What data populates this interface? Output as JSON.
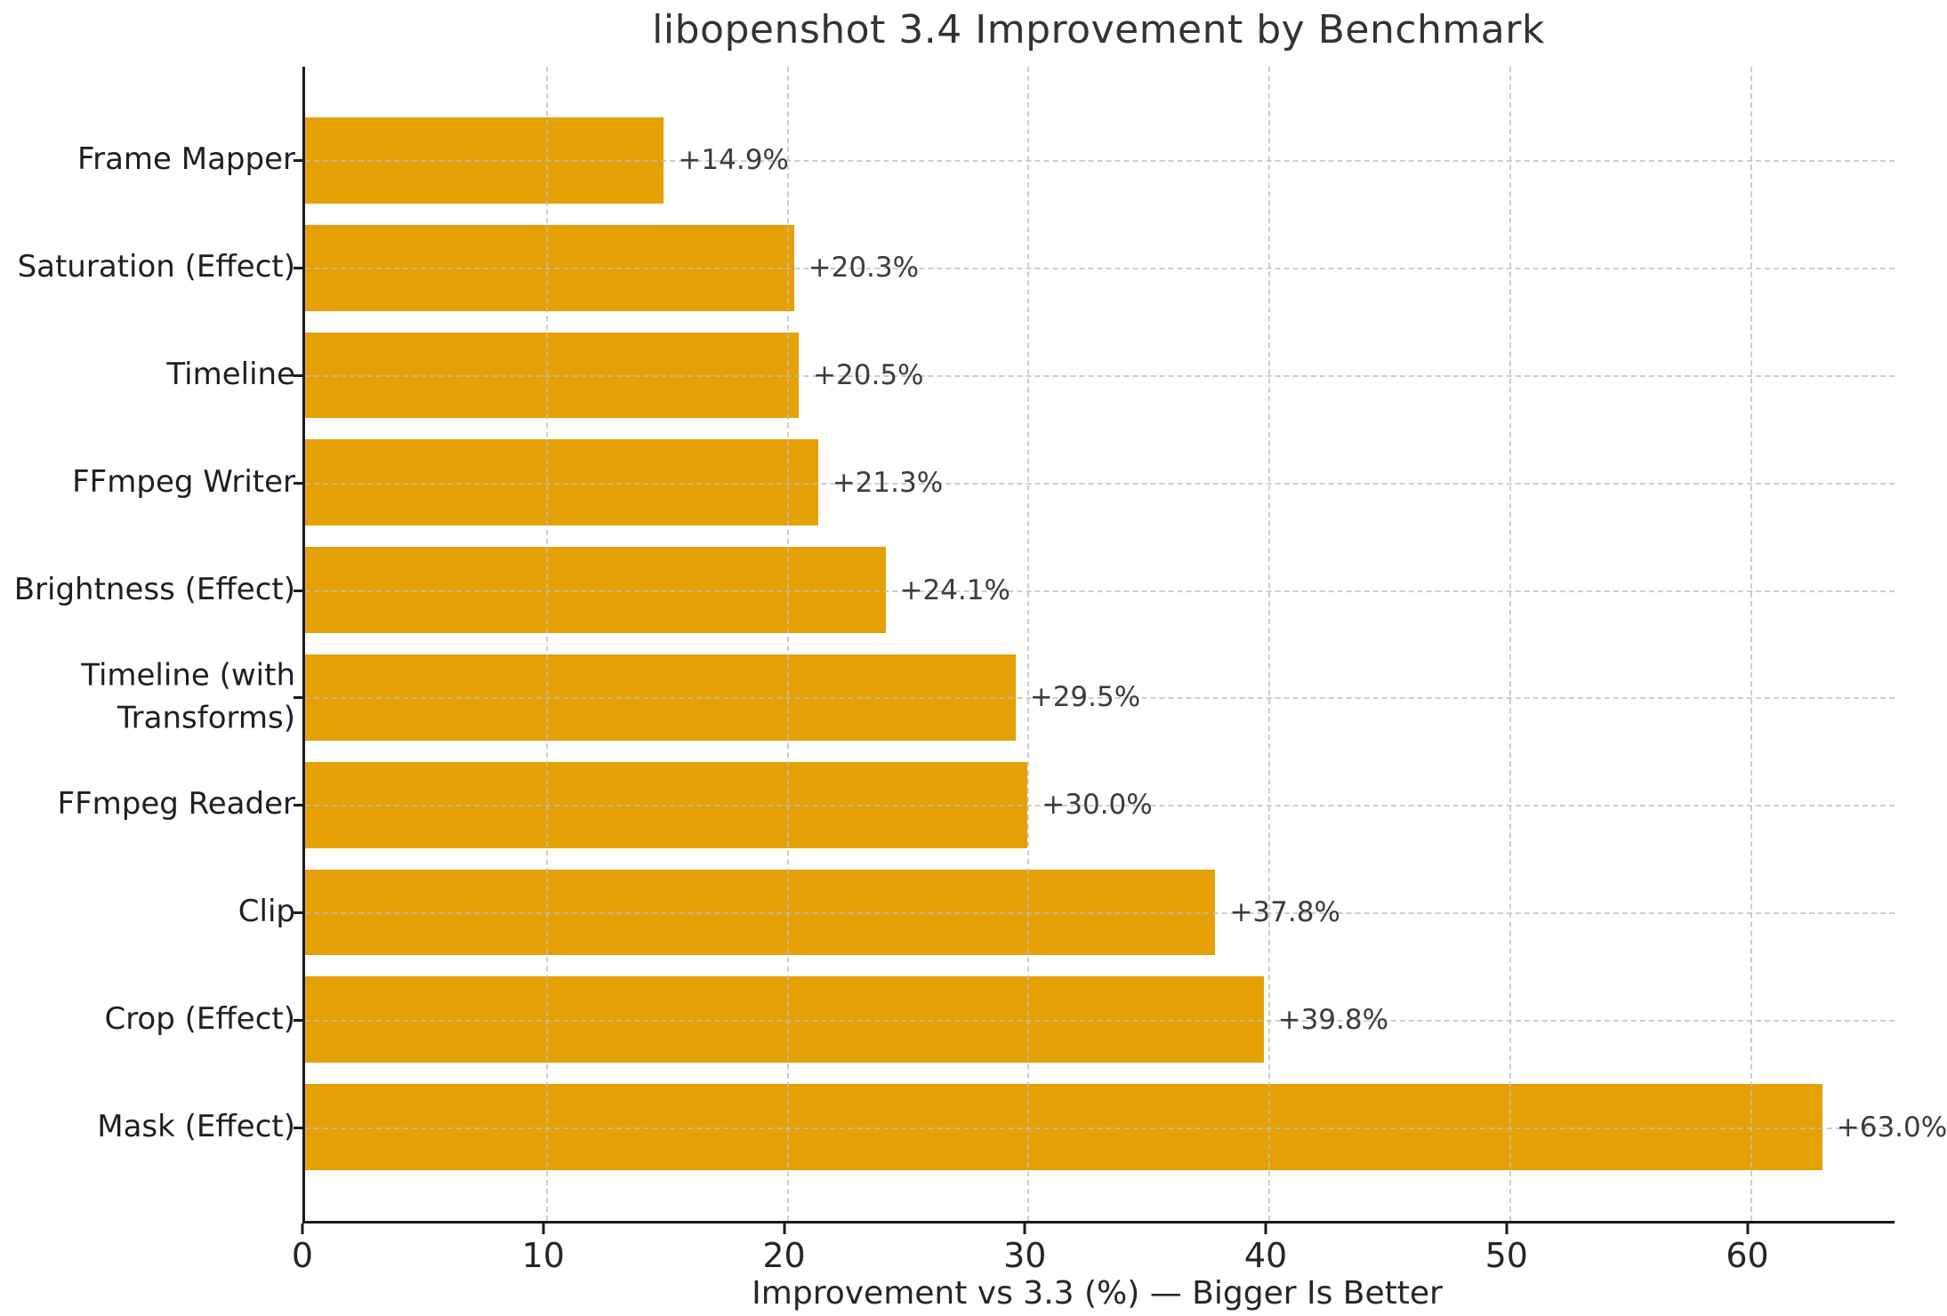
{
  "chart_data": {
    "type": "bar",
    "orientation": "horizontal",
    "title": "libopenshot 3.4 Improvement by Benchmark",
    "xlabel": "Improvement vs 3.3 (%) — Bigger Is Better",
    "categories": [
      "Frame Mapper",
      "Saturation (Effect)",
      "Timeline",
      "FFmpeg Writer",
      "Brightness (Effect)",
      "Timeline (with\nTransforms)",
      "FFmpeg Reader",
      "Clip",
      "Crop (Effect)",
      "Mask (Effect)"
    ],
    "values": [
      14.9,
      20.3,
      20.5,
      21.3,
      24.1,
      29.5,
      30.0,
      37.8,
      39.8,
      63.0
    ],
    "value_labels": [
      "+14.9%",
      "+20.3%",
      "+20.5%",
      "+21.3%",
      "+24.1%",
      "+29.5%",
      "+30.0%",
      "+37.8%",
      "+39.8%",
      "+63.0%"
    ],
    "xticks": [
      0,
      10,
      20,
      30,
      40,
      50,
      60
    ],
    "xlim": [
      0,
      66
    ],
    "bar_color": "#E5A006",
    "grid": "dashed-xy",
    "legend_position": "none",
    "background_color": "#FFFFFF",
    "spine_color": "#1a1a1a"
  }
}
